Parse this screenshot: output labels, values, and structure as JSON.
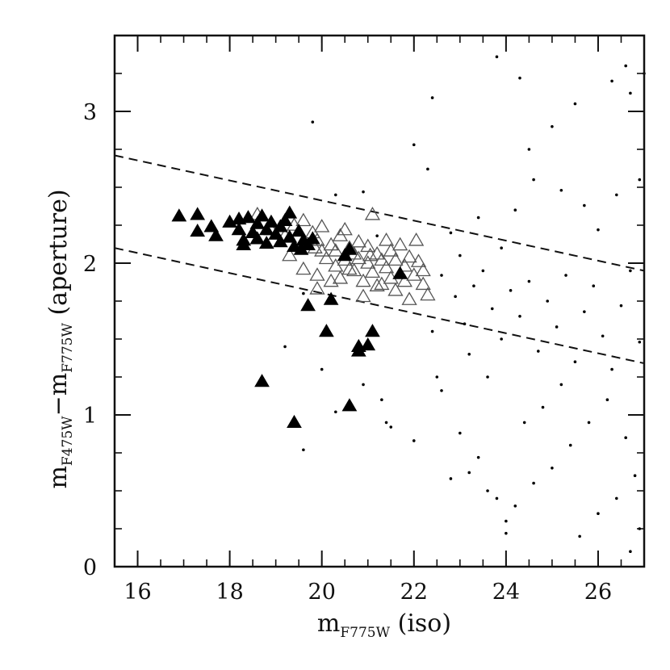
{
  "chart_data": {
    "type": "scatter",
    "title": "",
    "xlabel": {
      "main": "m",
      "sub": "F775W",
      "suffix": " (iso)"
    },
    "ylabel": {
      "main": "m",
      "sub1": "F475W",
      "mid": "−m",
      "sub2": "F775W",
      "suffix": " (aperture)"
    },
    "xlim": [
      15.5,
      27
    ],
    "ylim": [
      0,
      3.5
    ],
    "x_major_ticks": [
      16,
      18,
      20,
      22,
      24,
      26
    ],
    "x_major_labels": [
      "16",
      "18",
      "20",
      "22",
      "24",
      "26"
    ],
    "y_major_ticks": [
      0,
      1,
      2,
      3
    ],
    "y_major_labels": [
      "0",
      "1",
      "2",
      "3"
    ],
    "x_minor_step": 0.5,
    "y_minor_step": 0.25,
    "grid": false,
    "legend": "none",
    "selection_lines": [
      {
        "style": "dashed",
        "points": [
          [
            15.5,
            2.71
          ],
          [
            27,
            1.95
          ]
        ]
      },
      {
        "style": "dashed",
        "points": [
          [
            15.5,
            2.1
          ],
          [
            27,
            1.34
          ]
        ]
      }
    ],
    "series": [
      {
        "marker": "filled-triangle",
        "color": "#000000",
        "points": [
          [
            16.9,
            2.31
          ],
          [
            17.3,
            2.32
          ],
          [
            17.3,
            2.21
          ],
          [
            17.6,
            2.24
          ],
          [
            17.7,
            2.18
          ],
          [
            18.0,
            2.27
          ],
          [
            18.2,
            2.29
          ],
          [
            18.2,
            2.22
          ],
          [
            18.3,
            2.15
          ],
          [
            18.3,
            2.12
          ],
          [
            18.4,
            2.3
          ],
          [
            18.5,
            2.2
          ],
          [
            18.6,
            2.26
          ],
          [
            18.6,
            2.16
          ],
          [
            18.7,
            2.31
          ],
          [
            18.8,
            2.22
          ],
          [
            18.8,
            2.13
          ],
          [
            18.9,
            2.27
          ],
          [
            19.0,
            2.19
          ],
          [
            19.1,
            2.24
          ],
          [
            19.1,
            2.14
          ],
          [
            19.2,
            2.28
          ],
          [
            19.3,
            2.17
          ],
          [
            19.3,
            2.33
          ],
          [
            19.4,
            2.11
          ],
          [
            19.5,
            2.21
          ],
          [
            19.6,
            2.15
          ],
          [
            19.7,
            2.12
          ],
          [
            19.8,
            2.16
          ],
          [
            19.55,
            2.09
          ],
          [
            20.6,
            2.09
          ],
          [
            20.5,
            2.05
          ],
          [
            21.7,
            1.93
          ],
          [
            19.7,
            1.72
          ],
          [
            20.2,
            1.76
          ],
          [
            20.1,
            1.55
          ],
          [
            20.8,
            1.45
          ],
          [
            21.0,
            1.46
          ],
          [
            21.1,
            1.55
          ],
          [
            20.8,
            1.42
          ],
          [
            18.7,
            1.22
          ],
          [
            20.6,
            1.06
          ],
          [
            19.4,
            0.95
          ]
        ]
      },
      {
        "marker": "open-triangle",
        "color": "#555555",
        "points": [
          [
            18.6,
            2.32
          ],
          [
            18.9,
            2.22
          ],
          [
            19.2,
            2.18
          ],
          [
            19.4,
            2.25
          ],
          [
            19.6,
            2.28
          ],
          [
            19.8,
            2.2
          ],
          [
            19.9,
            2.15
          ],
          [
            20.0,
            2.24
          ],
          [
            20.0,
            2.08
          ],
          [
            20.1,
            2.03
          ],
          [
            20.2,
            2.12
          ],
          [
            20.3,
            1.98
          ],
          [
            19.9,
            1.92
          ],
          [
            20.4,
            2.18
          ],
          [
            20.5,
            2.22
          ],
          [
            20.5,
            2.02
          ],
          [
            20.6,
            2.1
          ],
          [
            20.7,
            1.95
          ],
          [
            20.8,
            2.14
          ],
          [
            20.8,
            2.03
          ],
          [
            20.9,
            1.88
          ],
          [
            21.0,
            2.11
          ],
          [
            21.0,
            2.0
          ],
          [
            21.1,
            2.32
          ],
          [
            21.1,
            1.94
          ],
          [
            21.2,
            2.06
          ],
          [
            21.3,
            1.86
          ],
          [
            21.3,
            2.02
          ],
          [
            21.4,
            1.97
          ],
          [
            21.5,
            2.08
          ],
          [
            21.5,
            1.9
          ],
          [
            21.6,
            2.02
          ],
          [
            21.7,
            2.12
          ],
          [
            21.8,
            1.98
          ],
          [
            21.8,
            1.88
          ],
          [
            21.9,
            2.04
          ],
          [
            22.0,
            1.92
          ],
          [
            22.1,
            2.01
          ],
          [
            22.2,
            1.86
          ],
          [
            22.2,
            1.95
          ],
          [
            21.9,
            1.76
          ],
          [
            22.3,
            1.79
          ],
          [
            19.3,
            2.05
          ],
          [
            19.6,
            1.96
          ],
          [
            19.9,
            1.83
          ],
          [
            20.2,
            1.88
          ],
          [
            20.4,
            1.9
          ],
          [
            20.9,
            1.78
          ],
          [
            21.2,
            1.85
          ],
          [
            20.6,
            1.96
          ],
          [
            21.4,
            2.15
          ],
          [
            21.6,
            1.82
          ],
          [
            22.05,
            2.15
          ],
          [
            19.85,
            2.1
          ],
          [
            20.3,
            2.08
          ],
          [
            20.7,
            2.06
          ],
          [
            21.05,
            2.05
          ]
        ]
      },
      {
        "marker": "dot",
        "color": "#000000",
        "points": [
          [
            19.8,
            2.93
          ],
          [
            20.3,
            2.45
          ],
          [
            20.9,
            2.47
          ],
          [
            21.2,
            2.18
          ],
          [
            19.6,
            1.8
          ],
          [
            20.0,
            1.3
          ],
          [
            19.2,
            1.45
          ],
          [
            20.3,
            1.02
          ],
          [
            19.6,
            0.77
          ],
          [
            20.9,
            1.2
          ],
          [
            21.3,
            1.1
          ],
          [
            21.4,
            0.95
          ],
          [
            21.5,
            0.92
          ],
          [
            22.0,
            0.83
          ],
          [
            22.6,
            1.16
          ],
          [
            22.8,
            0.58
          ],
          [
            23.0,
            0.88
          ],
          [
            23.2,
            0.62
          ],
          [
            23.4,
            0.72
          ],
          [
            23.6,
            0.5
          ],
          [
            23.8,
            0.45
          ],
          [
            24.0,
            0.22
          ],
          [
            24.0,
            0.3
          ],
          [
            24.3,
            3.22
          ],
          [
            23.8,
            3.36
          ],
          [
            22.4,
            3.09
          ],
          [
            22.0,
            2.78
          ],
          [
            22.3,
            2.62
          ],
          [
            24.5,
            2.75
          ],
          [
            25.0,
            2.9
          ],
          [
            25.5,
            3.05
          ],
          [
            26.3,
            3.2
          ],
          [
            26.6,
            3.3
          ],
          [
            26.7,
            3.12
          ],
          [
            27.0,
            3.25
          ],
          [
            24.6,
            2.55
          ],
          [
            25.2,
            2.48
          ],
          [
            25.7,
            2.38
          ],
          [
            26.0,
            2.22
          ],
          [
            26.4,
            2.45
          ],
          [
            26.9,
            2.55
          ],
          [
            22.8,
            2.2
          ],
          [
            23.4,
            2.3
          ],
          [
            23.9,
            2.1
          ],
          [
            24.2,
            2.35
          ],
          [
            23.0,
            2.05
          ],
          [
            22.6,
            1.92
          ],
          [
            22.9,
            1.78
          ],
          [
            23.1,
            1.6
          ],
          [
            23.3,
            1.85
          ],
          [
            23.5,
            1.95
          ],
          [
            23.7,
            1.7
          ],
          [
            23.9,
            1.5
          ],
          [
            24.1,
            1.82
          ],
          [
            24.3,
            1.65
          ],
          [
            24.5,
            1.88
          ],
          [
            24.7,
            1.42
          ],
          [
            24.9,
            1.75
          ],
          [
            25.1,
            1.58
          ],
          [
            25.3,
            1.92
          ],
          [
            25.5,
            1.35
          ],
          [
            25.7,
            1.68
          ],
          [
            25.9,
            1.85
          ],
          [
            26.1,
            1.52
          ],
          [
            26.3,
            1.3
          ],
          [
            26.5,
            1.72
          ],
          [
            26.7,
            1.95
          ],
          [
            26.9,
            1.48
          ],
          [
            26.2,
            1.1
          ],
          [
            25.8,
            0.95
          ],
          [
            25.4,
            0.8
          ],
          [
            25.0,
            0.65
          ],
          [
            24.6,
            0.55
          ],
          [
            24.2,
            0.4
          ],
          [
            26.6,
            0.85
          ],
          [
            26.8,
            0.6
          ],
          [
            26.4,
            0.45
          ],
          [
            26.0,
            0.35
          ],
          [
            25.6,
            0.2
          ],
          [
            26.9,
            0.25
          ],
          [
            26.7,
            0.1
          ],
          [
            25.2,
            1.2
          ],
          [
            24.8,
            1.05
          ],
          [
            24.4,
            0.95
          ],
          [
            23.6,
            1.25
          ],
          [
            23.2,
            1.4
          ],
          [
            22.4,
            1.55
          ],
          [
            22.5,
            1.25
          ]
        ]
      }
    ]
  }
}
